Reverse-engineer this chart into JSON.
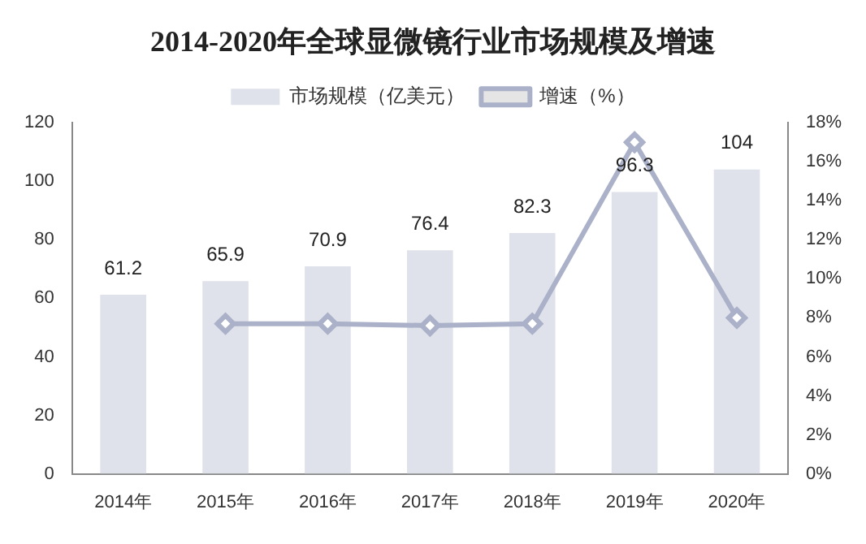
{
  "chart_data": {
    "type": "bar",
    "title": "2014-2020年全球显微镜行业市场规模及增速",
    "categories": [
      "2014年",
      "2015年",
      "2016年",
      "2017年",
      "2018年",
      "2019年",
      "2020年"
    ],
    "series": [
      {
        "name": "市场规模（亿美元）",
        "color": "#dfe2ea",
        "values": [
          61.2,
          65.9,
          70.9,
          76.4,
          82.3,
          96.3,
          104
        ],
        "value_labels": [
          "61.2",
          "65.9",
          "70.9",
          "76.4",
          "82.3",
          "96.3",
          "104"
        ]
      },
      {
        "name": "增速（%）",
        "type": "line",
        "axis": "y2",
        "color": "#aab1c8",
        "values": [
          null,
          7.7,
          7.7,
          7.6,
          7.7,
          17,
          8
        ]
      }
    ],
    "ylim": [
      0,
      120
    ],
    "yticks": [
      0,
      20,
      40,
      60,
      80,
      100,
      120
    ],
    "y2lim": [
      0,
      18
    ],
    "y2ticks": [
      {
        "value": 0,
        "label": "0%"
      },
      {
        "value": 2,
        "label": "2%"
      },
      {
        "value": 4,
        "label": "4%"
      },
      {
        "value": 6,
        "label": "6%"
      },
      {
        "value": 8,
        "label": "8%"
      },
      {
        "value": 10,
        "label": "10%"
      },
      {
        "value": 12,
        "label": "12%"
      },
      {
        "value": 14,
        "label": "14%"
      },
      {
        "value": 16,
        "label": "16%"
      },
      {
        "value": 18,
        "label": "18%"
      }
    ],
    "grid": false,
    "legend": "top",
    "marker": "diamond",
    "line_style": "solid"
  }
}
